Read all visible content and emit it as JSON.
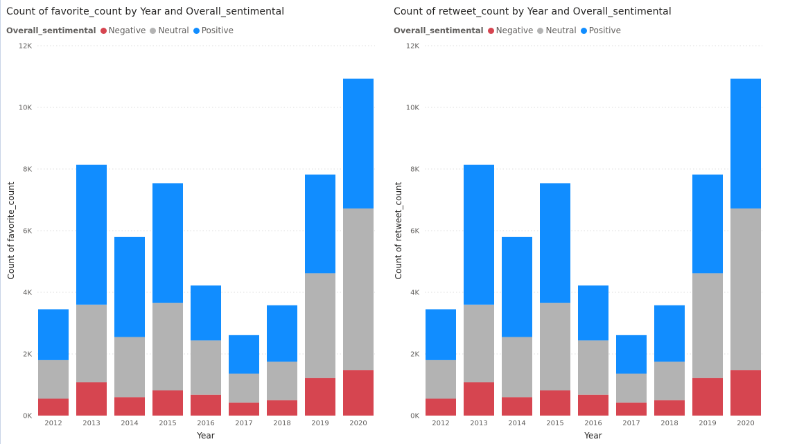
{
  "legend_title": "Overall_sentimental",
  "colors": {
    "Negative": "#d64550",
    "Neutral": "#b3b3b3",
    "Positive": "#118dff"
  },
  "chart_data": [
    {
      "type": "bar",
      "stacked": true,
      "title": "Count of favorite_count by Year and Overall_sentimental",
      "xlabel": "Year",
      "ylabel": "Count of favorite_count",
      "ylim": [
        0,
        12000
      ],
      "yticks": [
        "0K",
        "2K",
        "4K",
        "6K",
        "8K",
        "10K",
        "12K"
      ],
      "yticks_values": [
        0,
        2000,
        4000,
        6000,
        8000,
        10000,
        12000
      ],
      "grid": true,
      "legend_position": "top-left",
      "categories": [
        "2012",
        "2013",
        "2014",
        "2015",
        "2016",
        "2017",
        "2018",
        "2019",
        "2020"
      ],
      "series": [
        {
          "name": "Negative",
          "values": [
            550,
            1080,
            600,
            820,
            680,
            420,
            500,
            1220,
            1480
          ]
        },
        {
          "name": "Neutral",
          "values": [
            1250,
            2520,
            1950,
            2840,
            1760,
            940,
            1250,
            3400,
            5240
          ]
        },
        {
          "name": "Positive",
          "values": [
            1650,
            4540,
            3250,
            3880,
            1780,
            1250,
            1830,
            3200,
            4210
          ]
        }
      ]
    },
    {
      "type": "bar",
      "stacked": true,
      "title": "Count of retweet_count by Year and Overall_sentimental",
      "xlabel": "Year",
      "ylabel": "Count of retweet_count",
      "ylim": [
        0,
        12000
      ],
      "yticks": [
        "0K",
        "2K",
        "4K",
        "6K",
        "8K",
        "10K",
        "12K"
      ],
      "yticks_values": [
        0,
        2000,
        4000,
        6000,
        8000,
        10000,
        12000
      ],
      "grid": true,
      "legend_position": "top-left",
      "categories": [
        "2012",
        "2013",
        "2014",
        "2015",
        "2016",
        "2017",
        "2018",
        "2019",
        "2020"
      ],
      "series": [
        {
          "name": "Negative",
          "values": [
            550,
            1080,
            600,
            820,
            680,
            420,
            500,
            1220,
            1480
          ]
        },
        {
          "name": "Neutral",
          "values": [
            1250,
            2520,
            1950,
            2840,
            1760,
            940,
            1250,
            3400,
            5240
          ]
        },
        {
          "name": "Positive",
          "values": [
            1650,
            4540,
            3250,
            3880,
            1780,
            1250,
            1830,
            3200,
            4210
          ]
        }
      ]
    }
  ]
}
